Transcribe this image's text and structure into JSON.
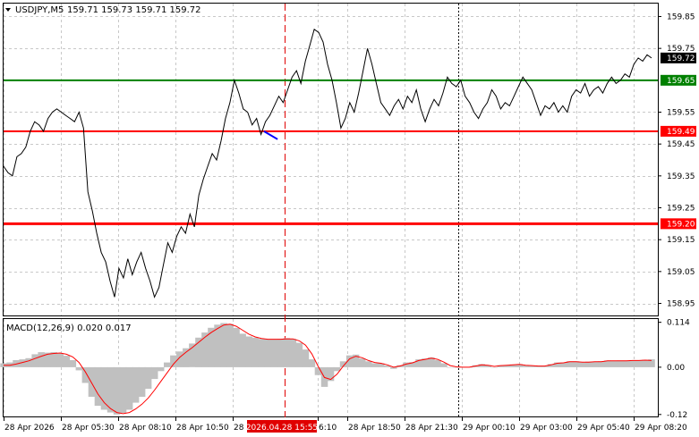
{
  "header": {
    "symbol": "USDJPY,M5",
    "ohlc": "159.71 159.73 159.71 159.72",
    "triangle_icon": "triangle-down-icon"
  },
  "macd_header": "MACD(12,26,9) 0.020 0.017",
  "colors": {
    "price_line": "#000000",
    "support_line": "#ff0000",
    "target_line": "#008000",
    "current_price_label": "#000000",
    "macd_histogram": "#c0c0c0",
    "macd_signal": "#ff0000",
    "vertical_marker": "#e00000",
    "annotation": "#0000ff",
    "grid": "#c8c8c8"
  },
  "chart_data": [
    {
      "type": "line",
      "title": "USDJPY,M5",
      "y_ticks": [
        "159.85",
        "159.75",
        "159.55",
        "159.45",
        "159.35",
        "159.25",
        "159.15",
        "159.05",
        "158.95"
      ],
      "ylim": [
        158.915,
        159.885
      ],
      "x_ticks": [
        "28 Apr 2026",
        "28 Apr 05:30",
        "28 Apr 08:10",
        "28 Apr 10:50",
        "28 A",
        "6:10",
        "28 Apr 18:50",
        "28 Apr 21:30",
        "29 Apr 00:10",
        "29 Apr 03:00",
        "29 Apr 05:40",
        "29 Apr 08:20"
      ],
      "marker_label": "2026.04.28 15:55",
      "series": [
        {
          "values": [
            159.38,
            159.36,
            159.35,
            159.41,
            159.42,
            159.44,
            159.49,
            159.52,
            159.51,
            159.49,
            159.53,
            159.55,
            159.56,
            159.55,
            159.54,
            159.53,
            159.52,
            159.55,
            159.5,
            159.3,
            159.24,
            159.17,
            159.11,
            159.08,
            159.02,
            158.97,
            159.06,
            159.03,
            159.09,
            159.04,
            159.08,
            159.11,
            159.06,
            159.02,
            158.97,
            159.0,
            159.07,
            159.14,
            159.11,
            159.16,
            159.19,
            159.17,
            159.23,
            159.19,
            159.29,
            159.34,
            159.38,
            159.42,
            159.4,
            159.46,
            159.53,
            159.58,
            159.65,
            159.61,
            159.56,
            159.55,
            159.51,
            159.53,
            159.48,
            159.52,
            159.54,
            159.57,
            159.6,
            159.58,
            159.62,
            159.66,
            159.68,
            159.64,
            159.71,
            159.76,
            159.81,
            159.8,
            159.77,
            159.7,
            159.65,
            159.58,
            159.5,
            159.53,
            159.58,
            159.55,
            159.61,
            159.68,
            159.75,
            159.7,
            159.64,
            159.58,
            159.56,
            159.54,
            159.57,
            159.59,
            159.56,
            159.6,
            159.58,
            159.62,
            159.56,
            159.52,
            159.56,
            159.59,
            159.57,
            159.61,
            159.66,
            159.64,
            159.63,
            159.65,
            159.6,
            159.58,
            159.55,
            159.53,
            159.56,
            159.58,
            159.62,
            159.6,
            159.56,
            159.58,
            159.57,
            159.6,
            159.63,
            159.66,
            159.64,
            159.62,
            159.58,
            159.54,
            159.57,
            159.56,
            159.58,
            159.55,
            159.57,
            159.55,
            159.6,
            159.62,
            159.61,
            159.64,
            159.6,
            159.62,
            159.63,
            159.61,
            159.64,
            159.66,
            159.64,
            159.65,
            159.67,
            159.66,
            159.7,
            159.72,
            159.71,
            159.73,
            159.72
          ]
        }
      ],
      "levels": [
        {
          "value": 159.72,
          "label": "159.72",
          "kind": "current"
        },
        {
          "value": 159.65,
          "label": "159.65",
          "kind": "target"
        },
        {
          "value": 159.49,
          "label": "159.49",
          "kind": "support"
        },
        {
          "value": 159.2,
          "label": "159.20",
          "kind": "support"
        }
      ],
      "annotation_segment": {
        "from": [
          0.4018,
          159.49
        ],
        "to": [
          0.4228,
          159.465
        ]
      }
    },
    {
      "type": "bar",
      "title": "MACD(12,26,9) 0.020 0.017",
      "y_ticks": [
        "0.114",
        "0.00",
        "-0.12"
      ],
      "ylim": [
        -0.125,
        0.12
      ],
      "series": [
        {
          "name": "MACD",
          "values": [
            0.01,
            0.012,
            0.018,
            0.02,
            0.023,
            0.033,
            0.038,
            0.037,
            0.038,
            0.035,
            0.029,
            0.018,
            -0.008,
            -0.04,
            -0.075,
            -0.098,
            -0.108,
            -0.115,
            -0.12,
            -0.116,
            -0.108,
            -0.09,
            -0.075,
            -0.055,
            -0.03,
            -0.01,
            0.012,
            0.03,
            0.04,
            0.048,
            0.06,
            0.075,
            0.088,
            0.1,
            0.108,
            0.112,
            0.11,
            0.1,
            0.085,
            0.078,
            0.075,
            0.072,
            0.071,
            0.07,
            0.072,
            0.074,
            0.072,
            0.062,
            0.045,
            0.02,
            -0.02,
            -0.05,
            -0.035,
            -0.01,
            0.015,
            0.03,
            0.032,
            0.022,
            0.015,
            0.01,
            0.01,
            0.004,
            -0.004,
            0.005,
            0.012,
            0.013,
            0.02,
            0.022,
            0.025,
            0.018,
            0.01,
            0.0,
            0.0,
            0.0,
            0.0,
            0.005,
            0.008,
            0.005,
            0.0,
            0.005,
            0.005,
            0.007,
            0.008,
            0.004,
            0.003,
            0.002,
            0.003,
            0.008,
            0.012,
            0.012,
            0.015,
            0.015,
            0.012,
            0.014,
            0.014,
            0.015,
            0.017,
            0.016,
            0.017,
            0.017,
            0.018,
            0.017,
            0.019,
            0.02
          ]
        },
        {
          "name": "Signal",
          "values": [
            0.005,
            0.005,
            0.008,
            0.012,
            0.016,
            0.022,
            0.028,
            0.033,
            0.035,
            0.036,
            0.033,
            0.026,
            0.012,
            -0.012,
            -0.04,
            -0.068,
            -0.09,
            -0.105,
            -0.115,
            -0.118,
            -0.115,
            -0.106,
            -0.094,
            -0.078,
            -0.058,
            -0.036,
            -0.014,
            0.008,
            0.025,
            0.038,
            0.05,
            0.063,
            0.076,
            0.088,
            0.098,
            0.107,
            0.109,
            0.104,
            0.094,
            0.084,
            0.077,
            0.073,
            0.071,
            0.071,
            0.071,
            0.072,
            0.072,
            0.067,
            0.056,
            0.034,
            0.002,
            -0.026,
            -0.031,
            -0.018,
            0.003,
            0.021,
            0.028,
            0.024,
            0.017,
            0.012,
            0.01,
            0.006,
            0.0,
            0.003,
            0.008,
            0.011,
            0.017,
            0.02,
            0.023,
            0.02,
            0.013,
            0.004,
            0.001,
            0.0,
            0.0,
            0.003,
            0.006,
            0.005,
            0.002,
            0.004,
            0.005,
            0.006,
            0.007,
            0.005,
            0.004,
            0.003,
            0.003,
            0.006,
            0.01,
            0.011,
            0.014,
            0.014,
            0.013,
            0.013,
            0.014,
            0.014,
            0.016,
            0.016,
            0.016,
            0.016,
            0.017,
            0.017,
            0.018,
            0.017
          ]
        }
      ]
    }
  ]
}
